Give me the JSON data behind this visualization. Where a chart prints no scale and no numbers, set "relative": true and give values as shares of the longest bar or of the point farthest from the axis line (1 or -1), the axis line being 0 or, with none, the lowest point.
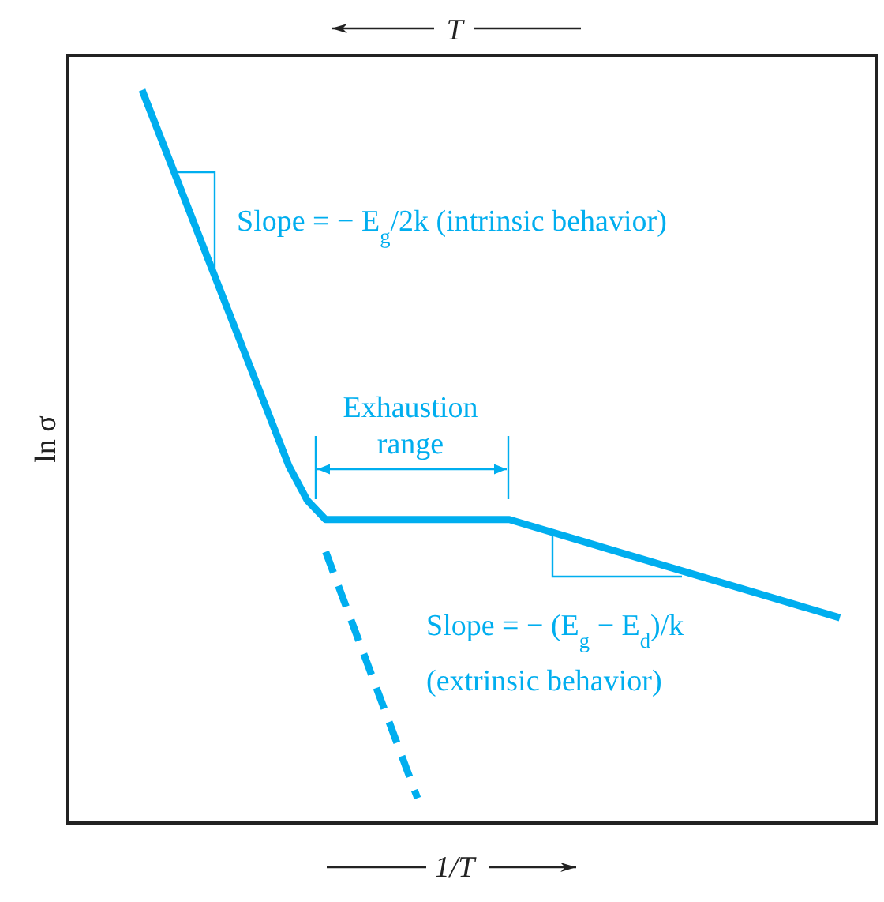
{
  "chart_data": {
    "type": "line",
    "relative": true,
    "xlabel": "1/T",
    "x2label": "T",
    "ylabel": "ln σ",
    "categories": [
      null,
      null,
      null,
      null,
      null,
      null,
      null,
      null,
      null,
      null,
      null,
      null,
      null,
      null,
      null,
      null,
      null,
      null,
      null,
      null,
      null,
      null,
      null,
      null,
      null,
      null,
      null,
      null,
      null,
      null,
      null,
      null,
      null,
      null,
      null,
      null,
      null,
      null,
      null
    ],
    "series": [
      {
        "color": "#00aeef",
        "line_style": "solid",
        "values": [
          1.0,
          null,
          null,
          null,
          null,
          null,
          null,
          null,
          0.487,
          0.44,
          0.414,
          null,
          null,
          null,
          null,
          null,
          null,
          null,
          null,
          null,
          0.414,
          null,
          null,
          null,
          null,
          null,
          null,
          null,
          null,
          null,
          null,
          null,
          null,
          null,
          null,
          null,
          null,
          null,
          0.28
        ]
      },
      {
        "color": "#00aeef",
        "line_style": "dashed",
        "values": [
          null,
          null,
          null,
          null,
          null,
          null,
          null,
          null,
          null,
          null,
          0.37,
          null,
          null,
          null,
          null,
          0.034,
          null,
          null,
          null,
          null,
          null,
          null,
          null,
          null,
          null,
          null,
          null,
          null,
          null,
          null,
          null,
          null,
          null,
          null,
          null,
          null,
          null,
          null,
          null
        ]
      }
    ],
    "annotations": [
      "Slope = − E$_{g}$/2k (intrinsic behavior)",
      "Exhaustion range",
      "Slope = − (E$_{g}$ − E$_{d}$)/k",
      "(extrinsic behavior)"
    ]
  }
}
